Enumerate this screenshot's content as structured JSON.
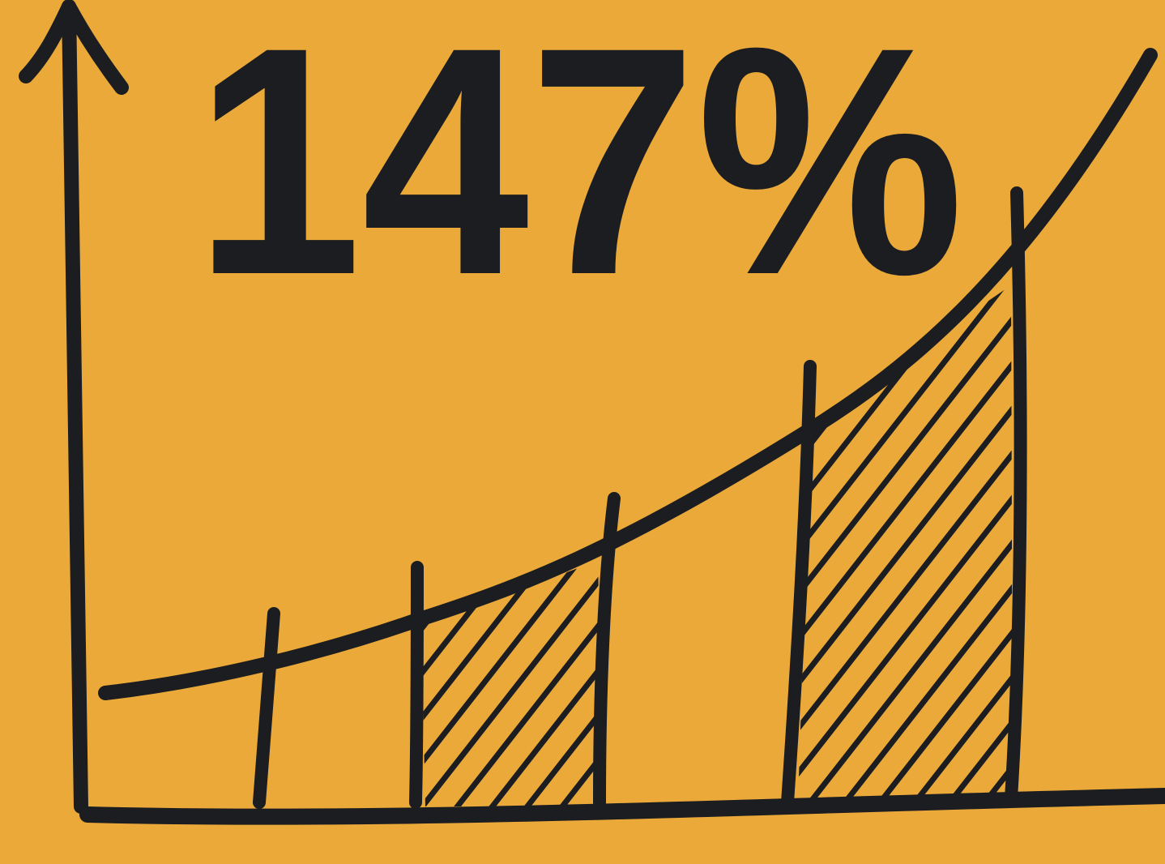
{
  "headline": "147%"
}
